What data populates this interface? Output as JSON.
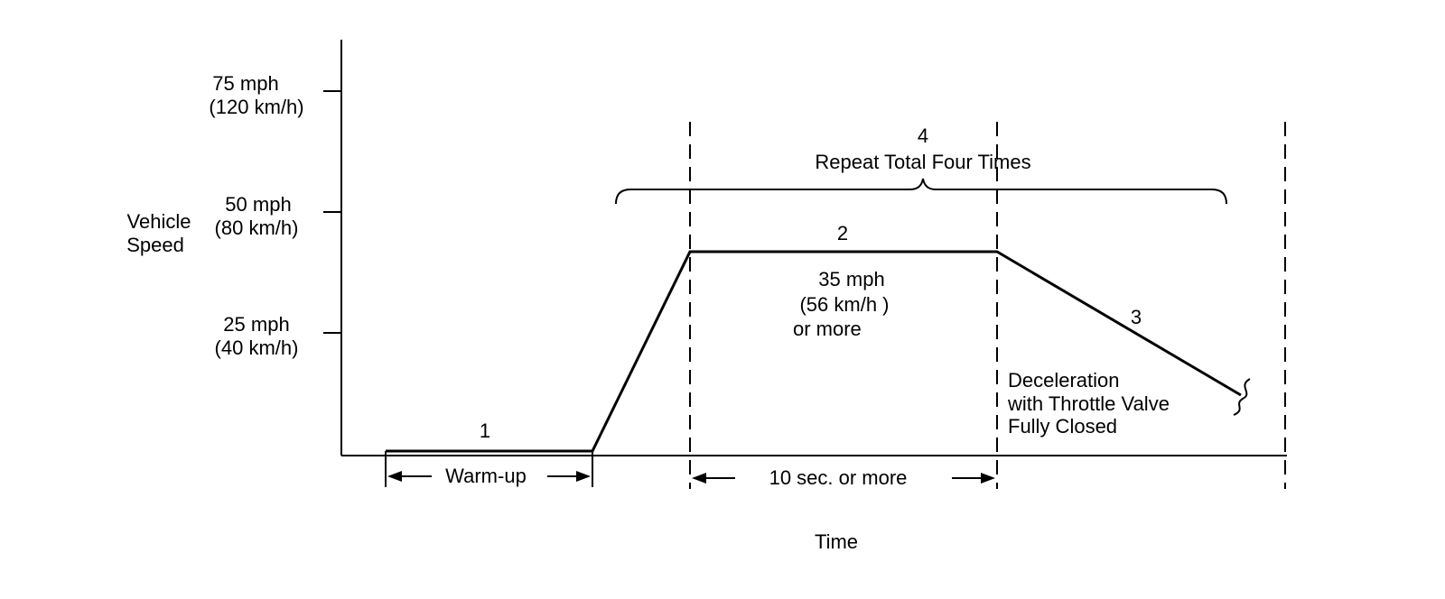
{
  "diagram": {
    "y_axis": {
      "label_line1": "Vehicle",
      "label_line2": "Speed",
      "ticks": [
        {
          "line1": "75 mph",
          "line2": "(120 km/h)"
        },
        {
          "line1": "50 mph",
          "line2": "(80 km/h)"
        },
        {
          "line1": "25 mph",
          "line2": "(40 km/h)"
        }
      ]
    },
    "x_axis": {
      "label": "Time"
    },
    "steps": {
      "step1": "1",
      "step2": "2",
      "step3": "3",
      "step4": "4"
    },
    "repeat_label": "Repeat Total Four Times",
    "speed_note": [
      "35 mph",
      "(56 km/h )",
      "or more"
    ],
    "decel_note": [
      "Deceleration",
      "with Throttle Valve",
      "Fully Closed"
    ],
    "warmup_label": "Warm-up",
    "duration_label": "10 sec. or more"
  }
}
